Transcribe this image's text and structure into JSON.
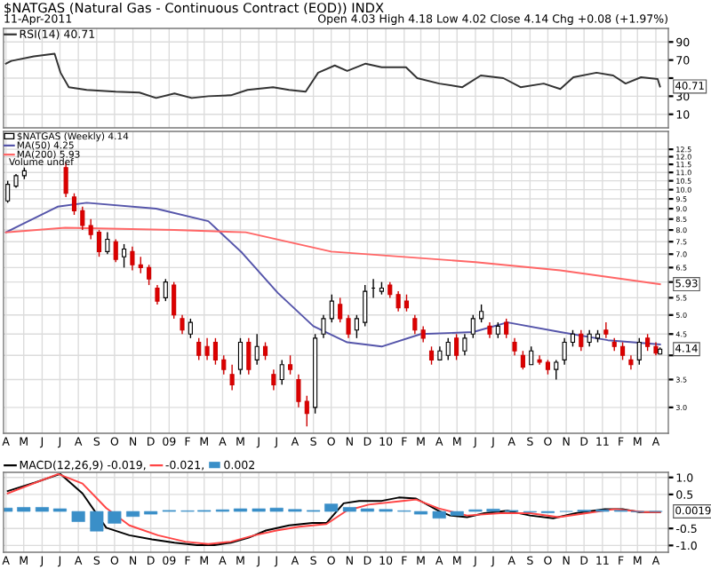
{
  "chart_data": [
    {
      "type": "line",
      "title": "$NATGAS (Natural Gas - Continuous Contract (EOD)) INDX",
      "subtitle": "11-Apr-2011",
      "annotations": [
        "Open 4.03 High 4.18 Low 4.02 Close 4.14 Chg +0.08 (+1.97%)",
        {
          "text": "40.71",
          "x": "2011-04-08",
          "y": 40.71
        }
      ],
      "series": [
        {
          "name": "RSI(14) 40.71",
          "color": "#333333",
          "x": [
            "2008-04-01",
            "2008-04-10",
            "2008-05-18",
            "2008-06-22",
            "2008-07-02",
            "2008-07-16",
            "2008-08-15",
            "2008-10-03",
            "2008-11-12",
            "2008-12-10",
            "2009-01-10",
            "2009-02-08",
            "2009-03-08",
            "2009-04-15",
            "2009-05-13",
            "2009-06-25",
            "2009-07-22",
            "2009-08-19",
            "2009-09-09",
            "2009-10-07",
            "2009-10-28",
            "2009-11-28",
            "2009-12-25",
            "2010-02-04",
            "2010-02-23",
            "2010-04-01",
            "2010-05-10",
            "2010-06-10",
            "2010-07-18",
            "2010-08-16",
            "2010-09-24",
            "2010-10-22",
            "2010-11-13",
            "2010-12-22",
            "2011-01-19",
            "2011-02-09",
            "2011-03-07",
            "2011-04-04",
            "2011-04-08"
          ],
          "values": [
            66,
            69,
            74,
            77,
            56,
            40,
            37,
            35,
            34,
            28,
            33,
            28,
            30,
            31,
            37,
            40,
            37,
            35,
            56,
            64,
            58,
            66,
            62,
            62,
            50,
            44,
            40,
            53,
            50,
            40,
            44,
            38,
            51,
            56,
            53,
            44,
            51,
            49,
            40.71
          ]
        }
      ],
      "xlim": [
        "2008-03-28",
        "2011-04-22"
      ],
      "ylim": [
        -5,
        105
      ],
      "yticks": [
        10,
        30,
        {
          "value": 50,
          "label": null
        },
        70,
        90
      ],
      "xticks": [
        {
          "value": "2008-04-01",
          "label": null
        },
        {
          "value": "2008-05-01",
          "label": null
        },
        {
          "value": "2008-06-01",
          "label": null
        },
        {
          "value": "2008-07-01",
          "label": null
        },
        {
          "value": "2008-08-01",
          "label": null
        },
        {
          "value": "2008-09-01",
          "label": null
        },
        {
          "value": "2008-10-01",
          "label": null
        },
        {
          "value": "2008-11-01",
          "label": null
        },
        {
          "value": "2008-12-01",
          "label": null
        },
        {
          "value": "2009-01-01",
          "label": null
        },
        {
          "value": "2009-02-01",
          "label": null
        },
        {
          "value": "2009-03-01",
          "label": null
        },
        {
          "value": "2009-04-01",
          "label": null
        },
        {
          "value": "2009-05-01",
          "label": null
        },
        {
          "value": "2009-06-01",
          "label": null
        },
        {
          "value": "2009-07-01",
          "label": null
        },
        {
          "value": "2009-08-01",
          "label": null
        },
        {
          "value": "2009-09-01",
          "label": null
        },
        {
          "value": "2009-10-01",
          "label": null
        },
        {
          "value": "2009-11-01",
          "label": null
        },
        {
          "value": "2009-12-01",
          "label": null
        },
        {
          "value": "2010-01-01",
          "label": null
        },
        {
          "value": "2010-02-01",
          "label": null
        },
        {
          "value": "2010-03-01",
          "label": null
        },
        {
          "value": "2010-04-01",
          "label": null
        },
        {
          "value": "2010-05-01",
          "label": null
        },
        {
          "value": "2010-06-01",
          "label": null
        },
        {
          "value": "2010-07-01",
          "label": null
        },
        {
          "value": "2010-08-01",
          "label": null
        },
        {
          "value": "2010-09-01",
          "label": null
        },
        {
          "value": "2010-10-01",
          "label": null
        },
        {
          "value": "2010-11-01",
          "label": null
        },
        {
          "value": "2010-12-01",
          "label": null
        },
        {
          "value": "2011-01-01",
          "label": null
        },
        {
          "value": "2011-02-01",
          "label": null
        },
        {
          "value": "2011-03-01",
          "label": null
        },
        {
          "value": "2011-04-01",
          "label": null
        }
      ],
      "tick_labels": "y",
      "grid": true,
      "legend": "top left"
    },
    {
      "type": "candlestick",
      "log": true,
      "annotations": [
        "Volume undef",
        {
          "text": "4.14",
          "x": "2011-04-08",
          "y": 4.14
        },
        {
          "text": "5.93",
          "x": "2011-04-08",
          "y": 5.93
        }
      ],
      "series": [
        {
          "type": "candlestick",
          "name": "$NATGAS (Weekly) 4.14",
          "x": [
            "2008-04-04",
            "2008-04-18",
            "2008-05-02",
            "2008-07-11",
            "2008-07-25",
            "2008-08-08",
            "2008-08-22",
            "2008-09-05",
            "2008-09-19",
            "2008-10-03",
            "2008-10-17",
            "2008-10-31",
            "2008-11-14",
            "2008-11-28",
            "2008-12-12",
            "2008-12-26",
            "2009-01-09",
            "2009-01-23",
            "2009-02-06",
            "2009-02-20",
            "2009-03-06",
            "2009-03-20",
            "2009-04-03",
            "2009-04-17",
            "2009-05-01",
            "2009-05-15",
            "2009-05-29",
            "2009-06-12",
            "2009-06-26",
            "2009-07-10",
            "2009-07-24",
            "2009-08-07",
            "2009-08-21",
            "2009-09-04",
            "2009-09-18",
            "2009-10-02",
            "2009-10-16",
            "2009-10-30",
            "2009-11-13",
            "2009-11-27",
            "2009-12-11",
            "2009-12-25",
            "2010-01-08",
            "2010-01-22",
            "2010-02-05",
            "2010-02-19",
            "2010-03-05",
            "2010-03-19",
            "2010-04-02",
            "2010-04-16",
            "2010-04-30",
            "2010-05-14",
            "2010-05-28",
            "2010-06-11",
            "2010-06-25",
            "2010-07-09",
            "2010-07-23",
            "2010-08-06",
            "2010-08-20",
            "2010-09-03",
            "2010-09-17",
            "2010-10-01",
            "2010-10-15",
            "2010-10-29",
            "2010-11-12",
            "2010-11-26",
            "2010-12-10",
            "2010-12-24",
            "2011-01-07",
            "2011-01-21",
            "2011-02-04",
            "2011-02-18",
            "2011-03-04",
            "2011-03-18",
            "2011-04-01",
            "2011-04-08"
          ],
          "ohlc": [
            [
              9.4,
              10.5,
              9.3,
              10.3
            ],
            [
              10.2,
              10.9,
              10.1,
              10.8
            ],
            [
              10.8,
              11.3,
              10.6,
              11.1
            ],
            [
              11.3,
              11.6,
              9.6,
              9.8
            ],
            [
              9.6,
              9.8,
              8.7,
              8.9
            ],
            [
              8.9,
              9.1,
              8.0,
              8.2
            ],
            [
              8.2,
              8.5,
              7.6,
              7.8
            ],
            [
              7.9,
              8.0,
              6.9,
              7.1
            ],
            [
              7.1,
              7.9,
              7.0,
              7.6
            ],
            [
              7.5,
              7.6,
              6.7,
              6.8
            ],
            [
              6.9,
              7.4,
              6.5,
              7.2
            ],
            [
              7.1,
              7.3,
              6.4,
              6.6
            ],
            [
              6.6,
              6.9,
              6.3,
              6.5
            ],
            [
              6.5,
              6.6,
              5.9,
              6.1
            ],
            [
              5.8,
              5.9,
              5.3,
              5.4
            ],
            [
              5.5,
              6.1,
              5.4,
              6.0
            ],
            [
              5.9,
              6.0,
              4.9,
              5.0
            ],
            [
              4.9,
              5.0,
              4.5,
              4.6
            ],
            [
              4.5,
              4.9,
              4.4,
              4.8
            ],
            [
              4.3,
              4.4,
              3.9,
              4.0
            ],
            [
              4.2,
              4.4,
              3.9,
              4.0
            ],
            [
              4.3,
              4.4,
              3.8,
              3.9
            ],
            [
              3.9,
              4.0,
              3.6,
              3.7
            ],
            [
              3.6,
              3.8,
              3.3,
              3.4
            ],
            [
              3.7,
              4.4,
              3.6,
              4.3
            ],
            [
              4.3,
              4.4,
              3.6,
              3.7
            ],
            [
              3.9,
              4.5,
              3.8,
              4.2
            ],
            [
              4.2,
              4.3,
              3.9,
              4.0
            ],
            [
              3.6,
              3.7,
              3.3,
              3.4
            ],
            [
              3.5,
              3.9,
              3.4,
              3.8
            ],
            [
              3.8,
              4.0,
              3.6,
              3.7
            ],
            [
              3.5,
              3.6,
              3.0,
              3.1
            ],
            [
              3.1,
              3.2,
              2.7,
              2.9
            ],
            [
              3.0,
              4.5,
              2.9,
              4.4
            ],
            [
              4.5,
              5.0,
              4.4,
              4.9
            ],
            [
              4.9,
              5.6,
              4.8,
              5.4
            ],
            [
              5.3,
              5.5,
              4.8,
              4.9
            ],
            [
              4.9,
              5.0,
              4.4,
              4.5
            ],
            [
              4.6,
              5.0,
              4.4,
              4.9
            ],
            [
              4.8,
              5.9,
              4.7,
              5.7
            ],
            [
              5.8,
              6.1,
              5.5,
              5.8
            ],
            [
              5.7,
              6.0,
              5.6,
              5.8
            ],
            [
              5.9,
              6.0,
              5.5,
              5.6
            ],
            [
              5.6,
              5.7,
              5.1,
              5.2
            ],
            [
              5.4,
              5.6,
              5.1,
              5.2
            ],
            [
              4.9,
              5.0,
              4.5,
              4.6
            ],
            [
              4.6,
              4.7,
              4.3,
              4.4
            ],
            [
              4.1,
              4.2,
              3.8,
              3.9
            ],
            [
              3.9,
              4.2,
              3.9,
              4.1
            ],
            [
              4.0,
              4.4,
              3.9,
              4.3
            ],
            [
              4.4,
              4.5,
              3.9,
              4.0
            ],
            [
              4.1,
              4.5,
              4.0,
              4.4
            ],
            [
              4.5,
              5.0,
              4.4,
              4.9
            ],
            [
              4.9,
              5.3,
              4.8,
              5.1
            ],
            [
              4.7,
              4.8,
              4.4,
              4.5
            ],
            [
              4.5,
              4.8,
              4.4,
              4.7
            ],
            [
              4.8,
              4.9,
              4.4,
              4.5
            ],
            [
              4.3,
              4.4,
              4.0,
              4.1
            ],
            [
              4.0,
              4.1,
              3.7,
              3.75
            ],
            [
              3.8,
              4.2,
              3.8,
              4.1
            ],
            [
              3.9,
              4.0,
              3.8,
              3.85
            ],
            [
              3.85,
              3.9,
              3.6,
              3.7
            ],
            [
              3.7,
              3.9,
              3.5,
              3.85
            ],
            [
              3.9,
              4.4,
              3.8,
              4.3
            ],
            [
              4.3,
              4.6,
              4.2,
              4.5
            ],
            [
              4.5,
              4.6,
              4.1,
              4.2
            ],
            [
              4.3,
              4.6,
              4.2,
              4.5
            ],
            [
              4.4,
              4.6,
              4.3,
              4.5
            ],
            [
              4.6,
              4.8,
              4.4,
              4.5
            ],
            [
              4.3,
              4.4,
              4.1,
              4.2
            ],
            [
              4.2,
              4.3,
              3.9,
              4.0
            ],
            [
              3.9,
              4.0,
              3.7,
              3.8
            ],
            [
              3.9,
              4.4,
              3.8,
              4.3
            ],
            [
              4.4,
              4.5,
              4.1,
              4.2
            ],
            [
              4.2,
              4.3,
              4.0,
              4.05
            ],
            [
              4.03,
              4.18,
              4.02,
              4.14
            ]
          ]
        },
        {
          "type": "line",
          "name": "MA(50) 4.25",
          "color": "#5555aa",
          "x": [
            "2008-04-01",
            "2008-06-27",
            "2008-08-15",
            "2008-12-10",
            "2009-03-08",
            "2009-05-04",
            "2009-07-03",
            "2009-09-01",
            "2009-10-28",
            "2009-12-25",
            "2010-03-01",
            "2010-05-28",
            "2010-07-25",
            "2010-10-22",
            "2011-01-10",
            "2011-04-08"
          ],
          "values": [
            7.9,
            9.1,
            9.3,
            9.0,
            8.4,
            7.05,
            5.65,
            4.7,
            4.3,
            4.2,
            4.5,
            4.55,
            4.8,
            4.55,
            4.35,
            4.25
          ]
        },
        {
          "type": "line",
          "name": "MA(200) 5.93",
          "color": "#ff6666",
          "x": [
            "2008-04-01",
            "2008-07-10",
            "2009-01-10",
            "2009-05-10",
            "2009-10-01",
            "2010-06-01",
            "2010-10-22",
            "2011-04-08"
          ],
          "values": [
            7.9,
            8.1,
            8.0,
            7.9,
            7.1,
            6.7,
            6.4,
            5.93
          ]
        }
      ],
      "xlim": [
        "2008-03-28",
        "2011-04-22"
      ],
      "ylim": [
        2.6,
        13.8
      ],
      "yticks": [
        {
          "value": 3,
          "label": "3.0"
        },
        {
          "value": 3.5,
          "label": "3.5"
        },
        {
          "value": 4,
          "label": null
        },
        {
          "value": 4.5,
          "label": "4.5"
        },
        {
          "value": 5,
          "label": "5.0"
        },
        {
          "value": 5.5,
          "label": "5.5"
        },
        {
          "value": 6,
          "label": null
        },
        {
          "value": 6.5,
          "label": "6.5"
        },
        {
          "value": 7,
          "label": "7.0"
        },
        {
          "value": 7.5,
          "label": "7.5"
        },
        {
          "value": 8,
          "label": "8.0"
        },
        {
          "value": 8.5,
          "label": "8.5"
        },
        {
          "value": 9,
          "label": "9.0"
        },
        {
          "value": 9.5,
          "label": "9.5"
        },
        {
          "value": 10,
          "label": "10.0"
        },
        {
          "value": 10.5,
          "label": "10.5"
        },
        {
          "value": 11,
          "label": "11.0"
        },
        {
          "value": 11.5,
          "label": "11.5"
        },
        {
          "value": 12,
          "label": "12.0"
        },
        {
          "value": 12.5,
          "label": "12.5"
        }
      ],
      "xticks": [
        {
          "value": "2008-04-01",
          "label": "A"
        },
        {
          "value": "2008-05-01",
          "label": "M"
        },
        {
          "value": "2008-06-01",
          "label": "J"
        },
        {
          "value": "2008-07-01",
          "label": "J"
        },
        {
          "value": "2008-08-01",
          "label": "A"
        },
        {
          "value": "2008-09-01",
          "label": "S"
        },
        {
          "value": "2008-10-01",
          "label": "O"
        },
        {
          "value": "2008-11-01",
          "label": "N"
        },
        {
          "value": "2008-12-01",
          "label": "D"
        },
        {
          "value": "2009-01-01",
          "label": "09"
        },
        {
          "value": "2009-02-01",
          "label": "F"
        },
        {
          "value": "2009-03-01",
          "label": "M"
        },
        {
          "value": "2009-04-01",
          "label": "A"
        },
        {
          "value": "2009-05-01",
          "label": "M"
        },
        {
          "value": "2009-06-01",
          "label": "J"
        },
        {
          "value": "2009-07-01",
          "label": "J"
        },
        {
          "value": "2009-08-01",
          "label": "A"
        },
        {
          "value": "2009-09-01",
          "label": "S"
        },
        {
          "value": "2009-10-01",
          "label": "O"
        },
        {
          "value": "2009-11-01",
          "label": "N"
        },
        {
          "value": "2009-12-01",
          "label": "D"
        },
        {
          "value": "2010-01-01",
          "label": "10"
        },
        {
          "value": "2010-02-01",
          "label": "F"
        },
        {
          "value": "2010-03-01",
          "label": "M"
        },
        {
          "value": "2010-04-01",
          "label": "A"
        },
        {
          "value": "2010-05-01",
          "label": "M"
        },
        {
          "value": "2010-06-01",
          "label": "J"
        },
        {
          "value": "2010-07-01",
          "label": "J"
        },
        {
          "value": "2010-08-01",
          "label": "A"
        },
        {
          "value": "2010-09-01",
          "label": "S"
        },
        {
          "value": "2010-10-01",
          "label": "O"
        },
        {
          "value": "2010-11-01",
          "label": "N"
        },
        {
          "value": "2010-12-01",
          "label": "D"
        },
        {
          "value": "2011-01-01",
          "label": "11"
        },
        {
          "value": "2011-02-01",
          "label": "F"
        },
        {
          "value": "2011-03-01",
          "label": "M"
        },
        {
          "value": "2011-04-01",
          "label": "A"
        }
      ],
      "grid": true,
      "legend": "top left"
    },
    {
      "type": "line",
      "annotations": [
        {
          "text": "0.0019",
          "x": "2011-04-08",
          "y": 0.0019
        }
      ],
      "series": [
        {
          "name": "MACD(12,26,9) -0.019,",
          "color": "#000000",
          "x": [
            "2008-04-04",
            "2008-05-20",
            "2008-06-28",
            "2008-07-02",
            "2008-08-08",
            "2008-09-17",
            "2008-10-26",
            "2008-12-03",
            "2009-01-10",
            "2009-02-17",
            "2009-03-18",
            "2009-04-15",
            "2009-05-15",
            "2009-06-13",
            "2009-07-22",
            "2009-08-30",
            "2009-09-23",
            "2009-10-22",
            "2009-11-17",
            "2009-12-25",
            "2010-01-23",
            "2010-02-21",
            "2010-03-31",
            "2010-04-19",
            "2010-05-18",
            "2010-06-16",
            "2010-07-25",
            "2010-09-01",
            "2010-10-10",
            "2010-11-17",
            "2011-01-05",
            "2011-02-04",
            "2011-03-04",
            "2011-04-08"
          ],
          "values": [
            0.6,
            0.85,
            1.08,
            1.1,
            0.53,
            -0.48,
            -0.7,
            -0.82,
            -0.92,
            -0.99,
            -0.99,
            -0.92,
            -0.77,
            -0.56,
            -0.41,
            -0.34,
            -0.34,
            0.24,
            0.31,
            0.31,
            0.41,
            0.38,
            0.02,
            -0.12,
            -0.17,
            -0.05,
            0.02,
            -0.12,
            -0.2,
            -0.05,
            0.07,
            0.07,
            -0.02,
            -0.019
          ]
        },
        {
          "name": "-0.021,",
          "color": "#ff4444",
          "x": [
            "2008-04-04",
            "2008-06-28",
            "2008-08-08",
            "2008-09-17",
            "2008-10-26",
            "2008-12-13",
            "2009-01-28",
            "2009-03-08",
            "2009-04-15",
            "2009-05-25",
            "2009-07-01",
            "2009-08-08",
            "2009-09-23",
            "2009-10-27",
            "2009-12-03",
            "2010-01-29",
            "2010-02-21",
            "2010-03-31",
            "2010-05-18",
            "2010-07-13",
            "2010-09-01",
            "2010-10-19",
            "2010-12-05",
            "2011-01-22",
            "2011-03-12",
            "2011-04-08"
          ],
          "values": [
            0.53,
            1.1,
            0.82,
            0.1,
            -0.41,
            -0.7,
            -0.89,
            -0.96,
            -0.89,
            -0.7,
            -0.56,
            -0.45,
            -0.37,
            0.02,
            0.2,
            0.31,
            0.35,
            0.09,
            -0.12,
            -0.05,
            -0.05,
            -0.17,
            -0.05,
            0.07,
            -0.02,
            -0.021
          ]
        },
        {
          "type": "bar",
          "name": "0.002",
          "color": "#3a8fc8",
          "x": [
            "2008-04-01",
            "2008-05-01",
            "2008-06-01",
            "2008-07-01",
            "2008-08-01",
            "2008-09-01",
            "2008-10-01",
            "2008-11-01",
            "2008-12-01",
            "2009-01-01",
            "2009-02-01",
            "2009-03-01",
            "2009-04-01",
            "2009-05-01",
            "2009-06-01",
            "2009-07-01",
            "2009-08-01",
            "2009-09-01",
            "2009-10-01",
            "2009-11-01",
            "2009-12-01",
            "2010-01-01",
            "2010-02-01",
            "2010-03-01",
            "2010-04-01",
            "2010-05-01",
            "2010-06-01",
            "2010-07-01",
            "2010-08-01",
            "2010-09-01",
            "2010-10-01",
            "2010-11-01",
            "2010-12-01",
            "2011-01-01",
            "2011-02-01",
            "2011-03-01",
            "2011-04-01"
          ],
          "values": [
            0.1,
            0.12,
            0.12,
            0.08,
            -0.3,
            -0.58,
            -0.35,
            -0.15,
            -0.08,
            0.03,
            0.02,
            0.03,
            0.05,
            0.08,
            0.08,
            0.1,
            0.06,
            0.03,
            0.22,
            0.12,
            0.08,
            0.06,
            0.02,
            -0.08,
            -0.2,
            -0.12,
            0.05,
            0.07,
            0.03,
            -0.02,
            -0.04,
            0.0,
            0.04,
            0.05,
            0.03,
            -0.01,
            0.0019
          ]
        }
      ],
      "xlim": [
        "2008-03-28",
        "2011-04-22"
      ],
      "ylim": [
        -1.2,
        1.15
      ],
      "yticks": [
        {
          "value": 1,
          "label": "1.0"
        },
        {
          "value": 0.5,
          "label": "0.5"
        },
        {
          "value": -0.5,
          "label": "-0.5"
        },
        {
          "value": -1,
          "label": "-1.0"
        }
      ],
      "xticks": [
        {
          "value": "2008-04-01",
          "label": "A"
        },
        {
          "value": "2008-05-01",
          "label": "M"
        },
        {
          "value": "2008-06-01",
          "label": "J"
        },
        {
          "value": "2008-07-01",
          "label": "J"
        },
        {
          "value": "2008-08-01",
          "label": "A"
        },
        {
          "value": "2008-09-01",
          "label": "S"
        },
        {
          "value": "2008-10-01",
          "label": "O"
        },
        {
          "value": "2008-11-01",
          "label": "N"
        },
        {
          "value": "2008-12-01",
          "label": "D"
        },
        {
          "value": "2009-01-01",
          "label": "09"
        },
        {
          "value": "2009-02-01",
          "label": "F"
        },
        {
          "value": "2009-03-01",
          "label": "M"
        },
        {
          "value": "2009-04-01",
          "label": "A"
        },
        {
          "value": "2009-05-01",
          "label": "M"
        },
        {
          "value": "2009-06-01",
          "label": "J"
        },
        {
          "value": "2009-07-01",
          "label": "J"
        },
        {
          "value": "2009-08-01",
          "label": "A"
        },
        {
          "value": "2009-09-01",
          "label": "S"
        },
        {
          "value": "2009-10-01",
          "label": "O"
        },
        {
          "value": "2009-11-01",
          "label": "N"
        },
        {
          "value": "2009-12-01",
          "label": "D"
        },
        {
          "value": "2010-01-01",
          "label": "10"
        },
        {
          "value": "2010-02-01",
          "label": "F"
        },
        {
          "value": "2010-03-01",
          "label": "M"
        },
        {
          "value": "2010-04-01",
          "label": "A"
        },
        {
          "value": "2010-05-01",
          "label": "M"
        },
        {
          "value": "2010-06-01",
          "label": "J"
        },
        {
          "value": "2010-07-01",
          "label": "J"
        },
        {
          "value": "2010-08-01",
          "label": "A"
        },
        {
          "value": "2010-09-01",
          "label": "S"
        },
        {
          "value": "2010-10-01",
          "label": "O"
        },
        {
          "value": "2010-11-01",
          "label": "N"
        },
        {
          "value": "2010-12-01",
          "label": "D"
        },
        {
          "value": "2011-01-01",
          "label": "11"
        },
        {
          "value": "2011-02-01",
          "label": "F"
        },
        {
          "value": "2011-03-01",
          "label": "M"
        },
        {
          "value": "2011-04-01",
          "label": "A"
        }
      ],
      "grid": true,
      "legend": "top left"
    }
  ]
}
